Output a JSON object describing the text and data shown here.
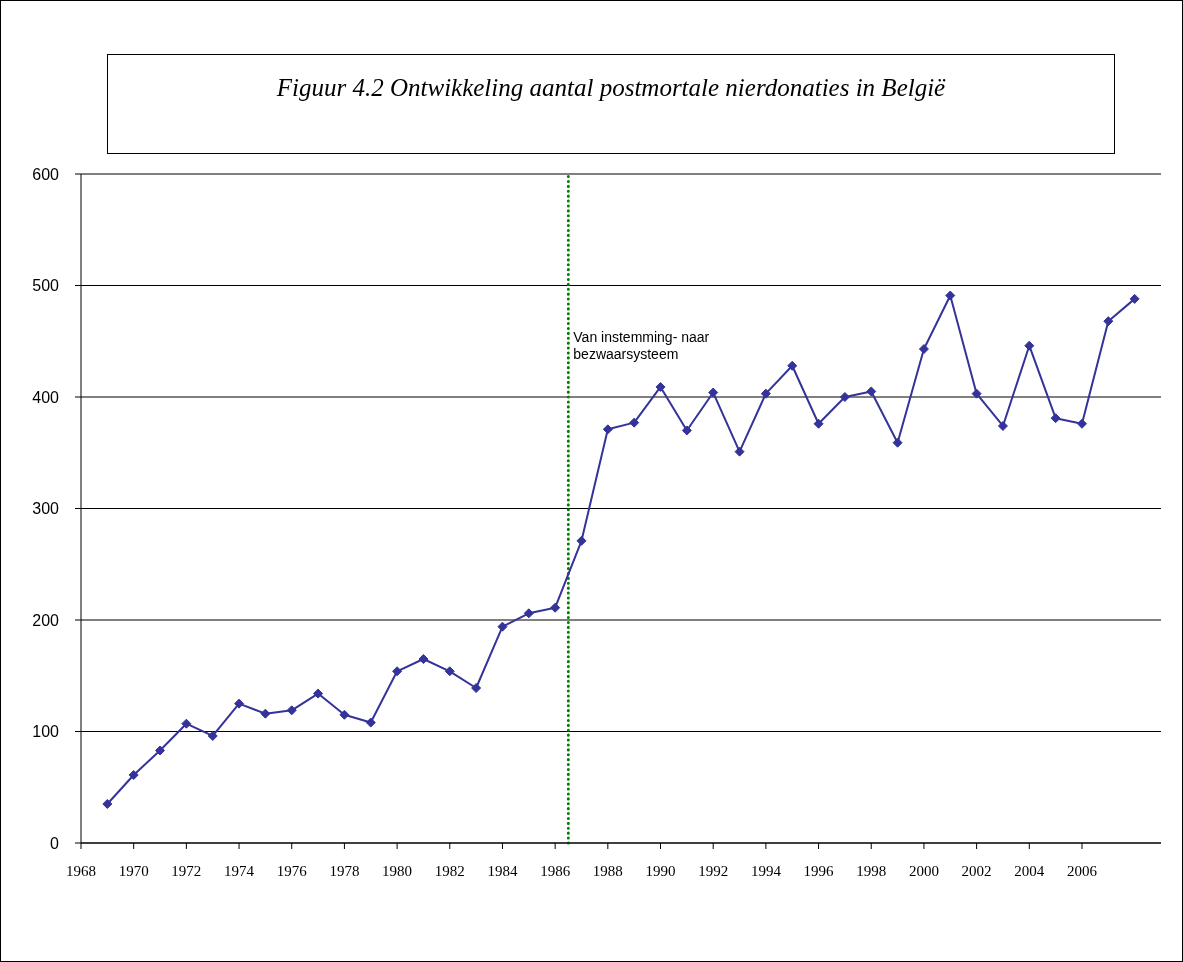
{
  "chart_data": {
    "type": "line",
    "title": "Figuur 4.2 Ontwikkeling aantal postmortale nierdonaties in België",
    "x": [
      1969,
      1970,
      1971,
      1972,
      1973,
      1974,
      1975,
      1976,
      1977,
      1978,
      1979,
      1980,
      1981,
      1982,
      1983,
      1984,
      1985,
      1986,
      1987,
      1988,
      1989,
      1990,
      1991,
      1992,
      1993,
      1994,
      1995,
      1996,
      1997,
      1998,
      1999,
      2000,
      2001,
      2002,
      2003,
      2004,
      2005,
      2006,
      2007,
      2008
    ],
    "values": [
      35,
      61,
      83,
      107,
      96,
      125,
      116,
      119,
      134,
      115,
      108,
      154,
      165,
      154,
      139,
      194,
      206,
      211,
      271,
      371,
      377,
      409,
      370,
      404,
      351,
      403,
      428,
      376,
      400,
      405,
      359,
      443,
      491,
      403,
      374,
      446,
      381,
      376,
      468,
      488
    ],
    "color": "#333399",
    "marker": "diamond",
    "line_style": "solid",
    "xlim": [
      1968,
      2009
    ],
    "xticks": [
      1968,
      1970,
      1972,
      1974,
      1976,
      1978,
      1980,
      1982,
      1984,
      1986,
      1988,
      1990,
      1992,
      1994,
      1996,
      1998,
      2000,
      2002,
      2004,
      2006
    ],
    "ylim": [
      0,
      600
    ],
    "yticks": [
      0,
      100,
      200,
      300,
      400,
      500,
      600
    ],
    "grid": "y",
    "ref_lines": [
      {
        "axis": "x",
        "value": 1986.5,
        "label": "Van instemming- naar bezwaarsysteem",
        "color": "#008000",
        "line_style": "dotted"
      }
    ]
  }
}
